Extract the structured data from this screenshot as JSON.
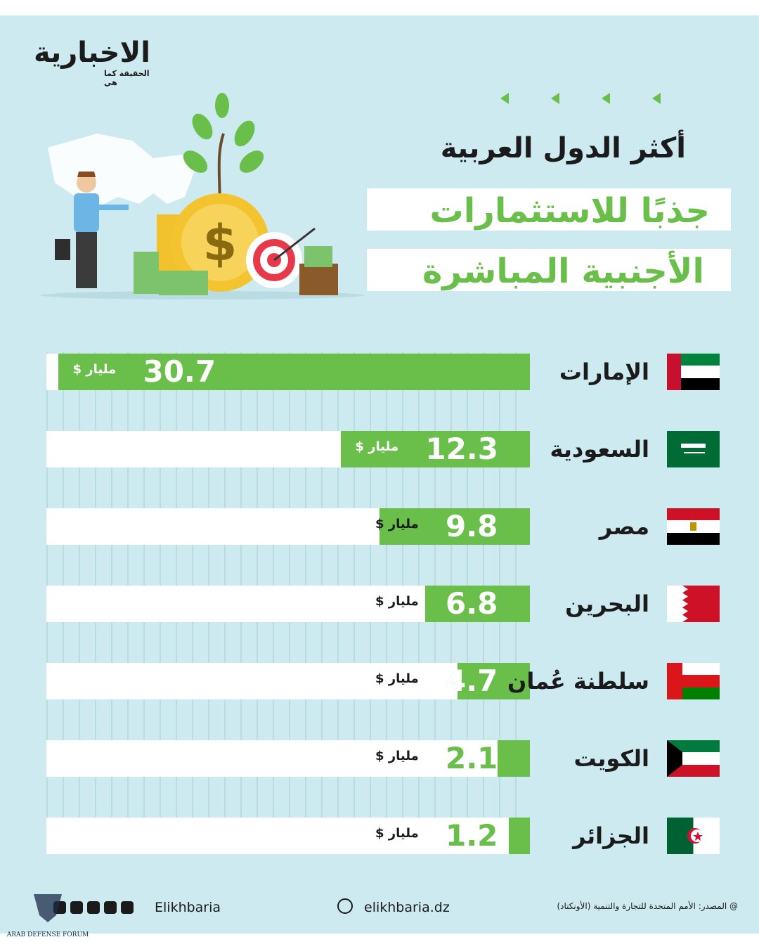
{
  "brand": {
    "logo_text": "الاخبارية",
    "tagline": "الحقيقة كما هي"
  },
  "title": {
    "line1": "أكثر الدول العربية",
    "line2": "جذبًا للاستثمارات",
    "line3": "الأجنبية المباشرة"
  },
  "colors": {
    "accent": "#6abf4b",
    "background": "#cdeaf0",
    "text": "#1b1b1b"
  },
  "chart_data": {
    "type": "bar",
    "orientation": "horizontal",
    "unit": "مليار $",
    "categories": [
      "الإمارات",
      "السعودية",
      "مصر",
      "البحرين",
      "سلطنة عُمان",
      "الكويت",
      "الجزائر"
    ],
    "values": [
      30.7,
      12.3,
      9.8,
      6.8,
      4.7,
      2.1,
      1.2
    ],
    "value_labels": [
      "30.7",
      "12.3",
      "9.8",
      "6.8",
      "4.7",
      "2.1",
      "1.2"
    ],
    "xlim": [
      0,
      31.5
    ],
    "grid": true
  },
  "footer": {
    "handle": "Elikhbaria",
    "website": "elikhbaria.dz",
    "source": "@ المصدر: الأمم المتحدة للتجارة والتنمية (الأونكتاد)",
    "social_icons": [
      "instagram-icon",
      "youtube-icon",
      "x-icon",
      "telegram-icon",
      "tiktok-icon"
    ]
  },
  "watermark": {
    "text": "ARAB DEFENSE FORUM"
  }
}
